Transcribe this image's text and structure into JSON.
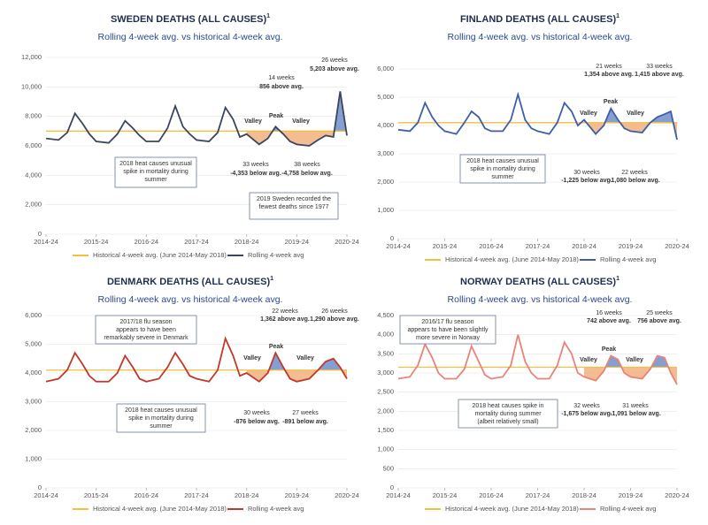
{
  "chart_data": [
    {
      "type": "line",
      "title": "SWEDEN DEATHS (ALL CAUSES)",
      "title_marker": "1",
      "subtitle": "Rolling 4-week avg. vs historical 4-week avg.",
      "x": [
        0,
        13,
        22,
        30,
        38,
        45,
        52,
        65,
        74,
        82,
        90,
        97,
        104,
        117,
        126,
        134,
        142,
        149,
        156,
        169,
        178,
        186,
        194,
        201,
        208,
        221,
        230,
        238,
        246,
        253,
        260,
        273,
        282,
        290,
        298,
        305,
        312
      ],
      "xlim": [
        0,
        312
      ],
      "xticks": [
        {
          "value": 0,
          "label": "2014-24"
        },
        {
          "value": 52,
          "label": "2015-24"
        },
        {
          "value": 104,
          "label": "2016-24"
        },
        {
          "value": 156,
          "label": "2017-24"
        },
        {
          "value": 208,
          "label": "2018-24"
        },
        {
          "value": 260,
          "label": "2019-24"
        },
        {
          "value": 312,
          "label": "2020-24"
        }
      ],
      "ylim": [
        0,
        12000
      ],
      "yticks": [
        0,
        {
          "value": 2000,
          "label": "2,000"
        },
        {
          "value": 4000,
          "label": "4,000"
        },
        {
          "value": 6000,
          "label": "6,000"
        },
        {
          "value": 8000,
          "label": "8,000"
        },
        {
          "value": 10000,
          "label": "10,000"
        },
        {
          "value": 12000,
          "label": "12,000"
        }
      ],
      "series": [
        {
          "name": "Historical 4-week avg. (June 2014-May 2018)",
          "color": "#f2bf3f",
          "values": [
            7000,
            7000,
            7000,
            7000,
            7000,
            7000,
            7000,
            7000,
            7000,
            7000,
            7000,
            7000,
            7000,
            7000,
            7000,
            7000,
            7000,
            7000,
            7000,
            7000,
            7000,
            7000,
            7000,
            7000,
            7000,
            7000,
            7000,
            7000,
            7000,
            7000,
            7000,
            7000,
            7000,
            7000,
            7000,
            7000,
            7000
          ]
        },
        {
          "name": "Rolling 4-week avg",
          "color": "#3b465e",
          "values": [
            6500,
            6400,
            6900,
            8200,
            7500,
            6800,
            6300,
            6200,
            6800,
            7700,
            7200,
            6700,
            6300,
            6300,
            7200,
            8700,
            7300,
            6800,
            6400,
            6300,
            6900,
            8600,
            7800,
            6600,
            6800,
            6100,
            6500,
            7300,
            6800,
            6300,
            6100,
            6000,
            6400,
            6700,
            6600,
            9700,
            6700
          ]
        }
      ],
      "shade_above": "#5b7fc0",
      "shade_below": "#f0a66e",
      "annotations": [
        "14 weeks",
        "856 above avg.",
        "26 weeks",
        "5,203 above avg.",
        "Peak",
        "Valley",
        "Valley",
        "33 weeks",
        "-4,353 below avg.",
        "38 weeks",
        "-4,758 below avg."
      ],
      "boxes": [
        [
          "2018 heat causes unusual",
          "spike in mortality during",
          "summer"
        ],
        [
          "2019 Sweden recorded the",
          "fewest deaths since 1977"
        ]
      ]
    },
    {
      "type": "line",
      "title": "FINLAND DEATHS (ALL CAUSES)",
      "title_marker": "1",
      "subtitle": "Rolling 4-week avg. vs historical 4-week avg.",
      "x": [
        0,
        13,
        22,
        30,
        38,
        45,
        52,
        65,
        74,
        82,
        90,
        97,
        104,
        117,
        126,
        134,
        142,
        149,
        156,
        169,
        178,
        186,
        194,
        201,
        208,
        221,
        230,
        238,
        246,
        253,
        260,
        273,
        282,
        290,
        298,
        305,
        312
      ],
      "xlim": [
        0,
        312
      ],
      "xticks": [
        {
          "value": 0,
          "label": "2014-24"
        },
        {
          "value": 52,
          "label": "2015-24"
        },
        {
          "value": 104,
          "label": "2016-24"
        },
        {
          "value": 156,
          "label": "2017-24"
        },
        {
          "value": 208,
          "label": "2018-24"
        },
        {
          "value": 260,
          "label": "2019-24"
        },
        {
          "value": 312,
          "label": "2020-24"
        }
      ],
      "ylim": [
        0,
        6000
      ],
      "yticks": [
        0,
        {
          "value": 1000,
          "label": "1,000"
        },
        {
          "value": 2000,
          "label": "2,000"
        },
        {
          "value": 3000,
          "label": "3,000"
        },
        {
          "value": 4000,
          "label": "4,000"
        },
        {
          "value": 5000,
          "label": "5,000"
        },
        {
          "value": 6000,
          "label": "6,000"
        }
      ],
      "series": [
        {
          "name": "Historical 4-week avg. (June 2014-May 2018)",
          "color": "#f2bf3f",
          "values": [
            4100,
            4100,
            4100,
            4100,
            4100,
            4100,
            4100,
            4100,
            4100,
            4100,
            4100,
            4100,
            4100,
            4100,
            4100,
            4100,
            4100,
            4100,
            4100,
            4100,
            4100,
            4100,
            4100,
            4100,
            4100,
            4100,
            4100,
            4100,
            4100,
            4100,
            4100,
            4100,
            4100,
            4100,
            4100,
            4100,
            4100
          ]
        },
        {
          "name": "Rolling 4-week avg",
          "color": "#3e5ea8",
          "values": [
            3850,
            3800,
            4100,
            4800,
            4300,
            4000,
            3800,
            3700,
            4100,
            4500,
            4300,
            3900,
            3800,
            3800,
            4200,
            5100,
            4200,
            3900,
            3800,
            3700,
            4100,
            4800,
            4500,
            4000,
            4200,
            3700,
            4000,
            4600,
            4200,
            3900,
            3800,
            3750,
            4100,
            4300,
            4400,
            4500,
            3500
          ]
        }
      ],
      "shade_above": "#5b7fc0",
      "shade_below": "#f0a66e",
      "annotations": [
        "21 weeks",
        "1,354 above avg.",
        "33 weeks",
        "1,415 above avg.",
        "Peak",
        "Valley",
        "Valley",
        "30 weeks",
        "-1,225 below avg.",
        "22 weeks",
        "-1,080 below avg."
      ],
      "boxes": [
        [
          "2018 heat causes unusual",
          "spike in mortality during",
          "summer"
        ]
      ]
    },
    {
      "type": "line",
      "title": "DENMARK DEATHS (ALL CAUSES)",
      "title_marker": "1",
      "subtitle": "Rolling 4-week avg. vs historical 4-week avg.",
      "x": [
        0,
        13,
        22,
        30,
        38,
        45,
        52,
        65,
        74,
        82,
        90,
        97,
        104,
        117,
        126,
        134,
        142,
        149,
        156,
        169,
        178,
        186,
        194,
        201,
        208,
        221,
        230,
        238,
        246,
        253,
        260,
        273,
        282,
        290,
        298,
        305,
        312
      ],
      "xlim": [
        0,
        312
      ],
      "xticks": [
        {
          "value": 0,
          "label": "2014-24"
        },
        {
          "value": 52,
          "label": "2015-24"
        },
        {
          "value": 104,
          "label": "2016-24"
        },
        {
          "value": 156,
          "label": "2017-24"
        },
        {
          "value": 208,
          "label": "2018-24"
        },
        {
          "value": 260,
          "label": "2019-24"
        },
        {
          "value": 312,
          "label": "2020-24"
        }
      ],
      "ylim": [
        0,
        6000
      ],
      "yticks": [
        0,
        {
          "value": 1000,
          "label": "1,000"
        },
        {
          "value": 2000,
          "label": "2,000"
        },
        {
          "value": 3000,
          "label": "3,000"
        },
        {
          "value": 4000,
          "label": "4,000"
        },
        {
          "value": 5000,
          "label": "5,000"
        },
        {
          "value": 6000,
          "label": "6,000"
        }
      ],
      "series": [
        {
          "name": "Historical 4-week avg. (June 2014-May 2018)",
          "color": "#f2bf3f",
          "values": [
            4100,
            4100,
            4100,
            4100,
            4100,
            4100,
            4100,
            4100,
            4100,
            4100,
            4100,
            4100,
            4100,
            4100,
            4100,
            4100,
            4100,
            4100,
            4100,
            4100,
            4100,
            4100,
            4100,
            4100,
            4100,
            4100,
            4100,
            4100,
            4100,
            4100,
            4100,
            4100,
            4100,
            4100,
            4100,
            4100,
            4100
          ]
        },
        {
          "name": "Rolling 4-week avg",
          "color": "#c0392b",
          "values": [
            3700,
            3800,
            4100,
            4700,
            4300,
            3900,
            3700,
            3700,
            4000,
            4600,
            4200,
            3800,
            3700,
            3800,
            4200,
            4700,
            4300,
            3900,
            3800,
            3700,
            4100,
            5200,
            4600,
            3900,
            4000,
            3700,
            4000,
            4700,
            4200,
            3800,
            3700,
            3800,
            4100,
            4400,
            4500,
            4200,
            3800
          ]
        }
      ],
      "shade_above": "#5b7fc0",
      "shade_below": "#f0a66e",
      "annotations": [
        "22 weeks",
        "1,362 above avg.",
        "26 weeks",
        "1,290 above avg.",
        "Peak",
        "Valley",
        "Valley",
        "30 weeks",
        "-876 below avg.",
        "27 weeks",
        "-891 below avg."
      ],
      "boxes": [
        [
          "2017/18 flu season",
          "appears to have been",
          "remarkably severe in Denmark"
        ],
        [
          "2018 heat causes unusual",
          "spike in mortality during",
          "summer"
        ]
      ]
    },
    {
      "type": "line",
      "title": "NORWAY DEATHS (ALL CAUSES)",
      "title_marker": "1",
      "subtitle": "Rolling 4-week avg. vs historical 4-week avg.",
      "x": [
        0,
        13,
        22,
        30,
        38,
        45,
        52,
        65,
        74,
        82,
        90,
        97,
        104,
        117,
        126,
        134,
        142,
        149,
        156,
        169,
        178,
        186,
        194,
        201,
        208,
        221,
        230,
        238,
        246,
        253,
        260,
        273,
        282,
        290,
        298,
        305,
        312
      ],
      "xlim": [
        0,
        312
      ],
      "xticks": [
        {
          "value": 0,
          "label": "2014-24"
        },
        {
          "value": 52,
          "label": "2015-24"
        },
        {
          "value": 104,
          "label": "2016-24"
        },
        {
          "value": 156,
          "label": "2017-24"
        },
        {
          "value": 208,
          "label": "2018-24"
        },
        {
          "value": 260,
          "label": "2019-24"
        },
        {
          "value": 312,
          "label": "2020-24"
        }
      ],
      "ylim": [
        0,
        4500
      ],
      "yticks": [
        0,
        500,
        {
          "value": 1000,
          "label": "1,000"
        },
        {
          "value": 1500,
          "label": "1,500"
        },
        {
          "value": 2000,
          "label": "2,000"
        },
        {
          "value": 2500,
          "label": "2,500"
        },
        {
          "value": 3000,
          "label": "3,000"
        },
        {
          "value": 3500,
          "label": "3,500"
        },
        {
          "value": 4000,
          "label": "4,000"
        },
        {
          "value": 4500,
          "label": "4,500"
        }
      ],
      "series": [
        {
          "name": "Historical 4-week avg. (June 2014-May 2018)",
          "color": "#f2bf3f",
          "values": [
            3150,
            3150,
            3150,
            3150,
            3150,
            3150,
            3150,
            3150,
            3150,
            3150,
            3150,
            3150,
            3150,
            3150,
            3150,
            3150,
            3150,
            3150,
            3150,
            3150,
            3150,
            3150,
            3150,
            3150,
            3150,
            3150,
            3150,
            3150,
            3150,
            3150,
            3150,
            3150,
            3150,
            3150,
            3150,
            3150,
            3150
          ]
        },
        {
          "name": "Rolling 4-week avg",
          "color": "#e8837a",
          "values": [
            2850,
            2900,
            3200,
            3750,
            3400,
            3000,
            2850,
            2850,
            3100,
            3700,
            3300,
            2950,
            2850,
            2900,
            3200,
            4000,
            3300,
            3000,
            2850,
            2850,
            3200,
            3800,
            3500,
            3000,
            2900,
            2800,
            3050,
            3450,
            3350,
            3000,
            2900,
            2850,
            3100,
            3450,
            3400,
            3000,
            2700
          ]
        }
      ],
      "shade_above": "#5b7fc0",
      "shade_below": "#f0a66e",
      "annotations": [
        "16 weeks",
        "742 above avg.",
        "25 weeks",
        "756 above avg.",
        "Peak",
        "Valley",
        "Valley",
        "32 weeks",
        "-1,675 below avg.",
        "31 weeks",
        "-1,091 below avg."
      ],
      "boxes": [
        [
          "2016/17 flu season",
          "appears to have been slightly",
          "more severe in Norway"
        ],
        [
          "2018 heat causes spike in",
          "mortality during summer",
          "(albeit relatively small)"
        ]
      ]
    }
  ]
}
